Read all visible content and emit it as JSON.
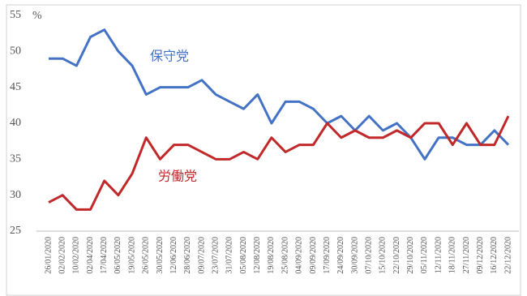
{
  "chart_data": {
    "type": "line",
    "y_unit": "%",
    "categories": [
      "26/01/2020",
      "02/02/2020",
      "10/02/2020",
      "02/04/2020",
      "17/04/2020",
      "06/05/2020",
      "19/05/2020",
      "26/05/2020",
      "30/05/2020",
      "12/06/2020",
      "28/06/2020",
      "09/07/2020",
      "23/07/2020",
      "31/07/2020",
      "05/08/2020",
      "12/08/2020",
      "19/08/2020",
      "25/08/2020",
      "04/09/2020",
      "09/09/2020",
      "17/09/2020",
      "24/09/2020",
      "30/09/2020",
      "07/10/2020",
      "15/10/2020",
      "22/10/2020",
      "29/10/2020",
      "05/11/2020",
      "12/11/2020",
      "18/11/2020",
      "27/11/2020",
      "09/12/2020",
      "16/12/2020",
      "22/12/2020"
    ],
    "series": [
      {
        "name": "保守党",
        "color": "#4472c4",
        "values": [
          49,
          49,
          48,
          52,
          53,
          50,
          48,
          44,
          45,
          45,
          45,
          46,
          44,
          43,
          42,
          44,
          40,
          43,
          43,
          42,
          40,
          41,
          39,
          41,
          39,
          40,
          38,
          35,
          38,
          38,
          37,
          37,
          39,
          37
        ]
      },
      {
        "name": "労働党",
        "color": "#c0282a",
        "values": [
          29,
          30,
          28,
          28,
          32,
          30,
          33,
          38,
          35,
          37,
          37,
          36,
          35,
          35,
          36,
          35,
          38,
          36,
          37,
          37,
          40,
          38,
          39,
          38,
          38,
          39,
          38,
          40,
          40,
          37,
          40,
          37,
          37,
          41
        ]
      }
    ],
    "ylim": [
      25,
      55
    ],
    "yticks": [
      25,
      30,
      35,
      40,
      45,
      50,
      55
    ],
    "grid": false
  }
}
